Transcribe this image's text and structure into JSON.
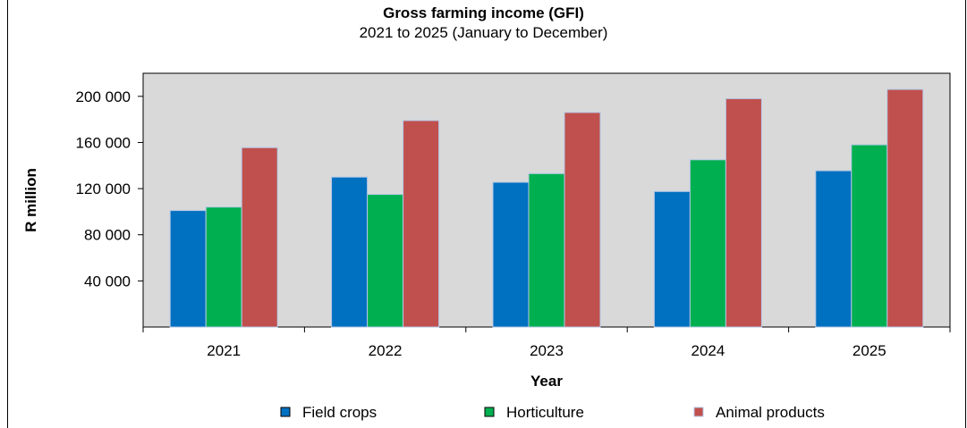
{
  "chart_data": {
    "type": "bar",
    "title": "Gross farming income (GFI)",
    "subtitle": "2021 to 2025 (January to December)",
    "xlabel": "Year",
    "ylabel": "R million",
    "categories": [
      "2021",
      "2022",
      "2023",
      "2024",
      "2025"
    ],
    "series": [
      {
        "name": "Field crops",
        "color": "#0070C0",
        "values": [
          101000,
          130000,
          125500,
          117500,
          135500
        ]
      },
      {
        "name": "Horticulture",
        "color": "#00B050",
        "values": [
          104000,
          115000,
          133000,
          145000,
          158000
        ]
      },
      {
        "name": "Animal products",
        "color": "#C0504D",
        "values": [
          155500,
          179000,
          186000,
          198000,
          206000
        ]
      }
    ],
    "ylim": [
      0,
      220000
    ],
    "yticks": [
      40000,
      80000,
      120000,
      160000,
      200000
    ],
    "ytick_labels": [
      "40 000",
      "80 000",
      "120 000",
      "160 000",
      "200 000"
    ],
    "plot_background": "#D9D9D9",
    "grid": false,
    "legend_position": "bottom"
  }
}
